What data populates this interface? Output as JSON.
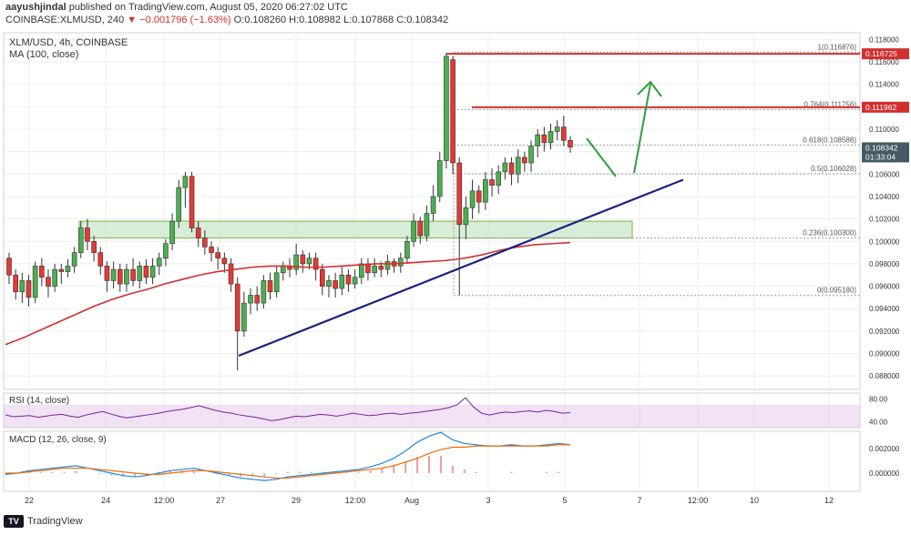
{
  "header": {
    "publisher": "aayushjindal",
    "published_text": "published on TradingView.com, August 05, 2020 06:27:02 UTC",
    "symbol": "COINBASE:XLMUSD, 240",
    "change": "▼ −0.001796 (−1.63%)",
    "ohlc": "O:0.108260 H:0.108982 L:0.107868 C:0.108342"
  },
  "footer": {
    "brand": "TradingView",
    "logo": "tradingview-logo"
  },
  "chart_data": {
    "type": "candlestick",
    "title": "XLM/USD, 4h, COINBASE",
    "ma_label": "MA (100, close)",
    "price_axis": {
      "ylim": [
        0.0868,
        0.1186
      ],
      "ticks": [
        "0.118000",
        "0.116000",
        "0.114000",
        "0.112000",
        "0.110000",
        "0.108000",
        "0.106000",
        "0.104000",
        "0.102000",
        "0.100000",
        "0.098000",
        "0.096000",
        "0.094000",
        "0.092000",
        "0.090000",
        "0.088000"
      ],
      "tick_values": [
        0.118,
        0.116,
        0.114,
        0.112,
        0.11,
        0.108,
        0.106,
        0.104,
        0.102,
        0.1,
        0.098,
        0.096,
        0.094,
        0.092,
        0.09,
        0.088
      ]
    },
    "price_badges": [
      {
        "value": 0.116725,
        "label": "0.116725",
        "color": "#d32f2f"
      },
      {
        "value": 0.111962,
        "label": "0.111962",
        "color": "#d32f2f"
      },
      {
        "value": 0.108342,
        "label": "0.108342",
        "sub": "01:33:04",
        "color": "#455a64"
      }
    ],
    "x_axis": {
      "labels": [
        "22",
        "24",
        "12:00",
        "27",
        "29",
        "12:00",
        "Aug",
        "3",
        "5",
        "7",
        "12:00",
        "10",
        "12"
      ]
    },
    "candles": [
      [
        0.0985,
        0.097,
        0.099,
        0.0962
      ],
      [
        0.097,
        0.0955,
        0.0975,
        0.0948
      ],
      [
        0.0955,
        0.0965,
        0.0972,
        0.0945
      ],
      [
        0.0965,
        0.095,
        0.097,
        0.0942
      ],
      [
        0.095,
        0.0978,
        0.0982,
        0.0945
      ],
      [
        0.0978,
        0.0968,
        0.0985,
        0.096
      ],
      [
        0.0968,
        0.096,
        0.0975,
        0.095
      ],
      [
        0.096,
        0.0975,
        0.098,
        0.0955
      ],
      [
        0.0975,
        0.0973,
        0.098,
        0.0962
      ],
      [
        0.0973,
        0.0978,
        0.0984,
        0.0968
      ],
      [
        0.0978,
        0.099,
        0.0995,
        0.0972
      ],
      [
        0.099,
        0.1012,
        0.1018,
        0.0985
      ],
      [
        0.1012,
        0.1,
        0.102,
        0.0992
      ],
      [
        0.1,
        0.099,
        0.1005,
        0.0982
      ],
      [
        0.099,
        0.0978,
        0.0995,
        0.097
      ],
      [
        0.0978,
        0.0965,
        0.0982,
        0.0955
      ],
      [
        0.0965,
        0.0975,
        0.0982,
        0.0958
      ],
      [
        0.0975,
        0.0962,
        0.098,
        0.0955
      ],
      [
        0.0962,
        0.0975,
        0.098,
        0.0955
      ],
      [
        0.0975,
        0.0965,
        0.0985,
        0.096
      ],
      [
        0.0965,
        0.0978,
        0.0982,
        0.0958
      ],
      [
        0.0978,
        0.0968,
        0.0984,
        0.0962
      ],
      [
        0.0968,
        0.0978,
        0.0985,
        0.0962
      ],
      [
        0.0978,
        0.0985,
        0.099,
        0.097
      ],
      [
        0.0985,
        0.0998,
        0.1002,
        0.0978
      ],
      [
        0.0998,
        0.1018,
        0.1025,
        0.0992
      ],
      [
        0.1018,
        0.1048,
        0.1055,
        0.1012
      ],
      [
        0.1048,
        0.1058,
        0.1062,
        0.103
      ],
      [
        0.1058,
        0.1012,
        0.1062,
        0.1008
      ],
      [
        0.1012,
        0.1003,
        0.1018,
        0.0995
      ],
      [
        0.1003,
        0.0995,
        0.101,
        0.0988
      ],
      [
        0.0995,
        0.099,
        0.1,
        0.0982
      ],
      [
        0.099,
        0.0985,
        0.0995,
        0.0975
      ],
      [
        0.0985,
        0.098,
        0.099,
        0.0972
      ],
      [
        0.098,
        0.0962,
        0.0985,
        0.0955
      ],
      [
        0.0962,
        0.092,
        0.0968,
        0.0885
      ],
      [
        0.092,
        0.0945,
        0.0955,
        0.0915
      ],
      [
        0.0945,
        0.0952,
        0.0958,
        0.0935
      ],
      [
        0.0952,
        0.0945,
        0.096,
        0.0938
      ],
      [
        0.0945,
        0.0965,
        0.097,
        0.094
      ],
      [
        0.0965,
        0.0955,
        0.0972,
        0.0948
      ],
      [
        0.0955,
        0.0972,
        0.0978,
        0.095
      ],
      [
        0.0972,
        0.0978,
        0.0982,
        0.0965
      ],
      [
        0.0978,
        0.0975,
        0.0985,
        0.0968
      ],
      [
        0.0975,
        0.0988,
        0.0998,
        0.097
      ],
      [
        0.0988,
        0.098,
        0.0992,
        0.0972
      ],
      [
        0.098,
        0.0985,
        0.099,
        0.0975
      ],
      [
        0.0985,
        0.0975,
        0.099,
        0.0965
      ],
      [
        0.0975,
        0.096,
        0.098,
        0.0952
      ],
      [
        0.096,
        0.0965,
        0.097,
        0.095
      ],
      [
        0.0965,
        0.0958,
        0.0972,
        0.095
      ],
      [
        0.0958,
        0.097,
        0.0978,
        0.0952
      ],
      [
        0.097,
        0.0962,
        0.0975,
        0.0955
      ],
      [
        0.0962,
        0.0968,
        0.0975,
        0.0958
      ],
      [
        0.0968,
        0.098,
        0.0985,
        0.0962
      ],
      [
        0.098,
        0.0972,
        0.0985,
        0.0965
      ],
      [
        0.0972,
        0.0978,
        0.0985,
        0.0968
      ],
      [
        0.0978,
        0.0975,
        0.0982,
        0.0968
      ],
      [
        0.0975,
        0.0982,
        0.0988,
        0.097
      ],
      [
        0.0982,
        0.0978,
        0.0985,
        0.0972
      ],
      [
        0.0978,
        0.0985,
        0.099,
        0.0972
      ],
      [
        0.0985,
        0.1,
        0.1005,
        0.098
      ],
      [
        0.1,
        0.1018,
        0.1025,
        0.0995
      ],
      [
        0.1018,
        0.1005,
        0.1022,
        0.0998
      ],
      [
        0.1005,
        0.1025,
        0.1032,
        0.1
      ],
      [
        0.1025,
        0.104,
        0.105,
        0.1018
      ],
      [
        0.104,
        0.1072,
        0.108,
        0.1035
      ],
      [
        0.1072,
        0.1165,
        0.1168,
        0.1065
      ],
      [
        0.1162,
        0.107,
        0.1165,
        0.106
      ],
      [
        0.107,
        0.1015,
        0.1075,
        0.0952
      ],
      [
        0.1015,
        0.103,
        0.104,
        0.1002
      ],
      [
        0.103,
        0.1045,
        0.1055,
        0.102
      ],
      [
        0.1045,
        0.1035,
        0.105,
        0.1025
      ],
      [
        0.1035,
        0.1055,
        0.1062,
        0.1028
      ],
      [
        0.1055,
        0.105,
        0.1065,
        0.104
      ],
      [
        0.105,
        0.1062,
        0.1068,
        0.1042
      ],
      [
        0.1062,
        0.107,
        0.1075,
        0.1055
      ],
      [
        0.107,
        0.106,
        0.1075,
        0.105
      ],
      [
        0.106,
        0.1075,
        0.1082,
        0.1052
      ],
      [
        0.1075,
        0.107,
        0.108,
        0.1062
      ],
      [
        0.107,
        0.1085,
        0.109,
        0.1062
      ],
      [
        0.1085,
        0.1095,
        0.11,
        0.1075
      ],
      [
        0.1095,
        0.1088,
        0.1102,
        0.108
      ],
      [
        0.1088,
        0.1098,
        0.1105,
        0.1082
      ],
      [
        0.1098,
        0.1102,
        0.1108,
        0.109
      ],
      [
        0.1102,
        0.109,
        0.1112,
        0.1085
      ],
      [
        0.109,
        0.1084,
        0.1094,
        0.1079
      ]
    ],
    "ma100": [
      0.0908,
      0.0914,
      0.0921,
      0.0928,
      0.0935,
      0.0942,
      0.0948,
      0.0953,
      0.0957,
      0.0962,
      0.0966,
      0.097,
      0.0973,
      0.0975,
      0.0977,
      0.0978,
      0.0978,
      0.0977,
      0.0977,
      0.0978,
      0.0979,
      0.098,
      0.098,
      0.0981,
      0.0982,
      0.0983,
      0.0985,
      0.0988,
      0.0992,
      0.0995,
      0.0997,
      0.0998,
      0.0999
    ],
    "fib": {
      "levels": [
        {
          "ratio": "1",
          "value": 0.116876,
          "label": "1(0.116876)"
        },
        {
          "ratio": "0.764",
          "value": 0.111756,
          "label": "0.764(0.111756)"
        },
        {
          "ratio": "0.618",
          "value": 0.108588,
          "label": "0.618(0.108588)"
        },
        {
          "ratio": "0.5",
          "value": 0.106028,
          "label": "0.5(0.106028)"
        },
        {
          "ratio": "0.236",
          "value": 0.1003,
          "label": "0.236(0.100300)"
        },
        {
          "ratio": "0",
          "value": 0.09518,
          "label": "0(0.095180)"
        }
      ]
    },
    "resistance_lines": [
      0.116725,
      0.111962
    ],
    "support_zone": [
      0.1003,
      0.1018
    ],
    "trend_line": [
      [
        0.0898,
        0
      ],
      [
        0.1055,
        1
      ]
    ],
    "rsi": {
      "label": "RSI (14, close)",
      "ticks": [
        "80.00",
        "40.00"
      ],
      "tick_values": [
        80,
        40
      ],
      "band": [
        30,
        70
      ],
      "values": [
        52,
        49,
        50,
        51,
        48,
        50,
        52,
        53,
        50,
        48,
        52,
        55,
        58,
        54,
        50,
        47,
        49,
        51,
        53,
        55,
        58,
        60,
        62,
        65,
        68,
        64,
        60,
        57,
        55,
        52,
        50,
        48,
        45,
        42,
        44,
        47,
        50,
        49,
        51,
        53,
        52,
        50,
        52,
        55,
        53,
        51,
        52,
        54,
        55,
        53,
        55,
        56,
        58,
        60,
        62,
        65,
        70,
        82,
        66,
        55,
        52,
        55,
        57,
        56,
        58,
        59,
        57,
        60,
        58,
        55,
        56
      ]
    },
    "macd": {
      "label": "MACD (12, 26, close, 9)",
      "ticks": [
        "0.002000",
        "0.000000"
      ],
      "tick_values": [
        0.002,
        0.0
      ],
      "macd": [
        -0.0001,
        0.0,
        0.0002,
        0.0003,
        0.0004,
        0.0005,
        0.0006,
        0.0004,
        0.0002,
        0.0,
        -0.0002,
        -0.0003,
        -0.0002,
        0.0,
        0.0002,
        0.0003,
        0.0004,
        0.0002,
        0.0,
        -0.0002,
        -0.0004,
        -0.0005,
        -0.0006,
        -0.0005,
        -0.0003,
        -0.0002,
        -0.0001,
        0.0,
        0.0001,
        0.0002,
        0.0003,
        0.0005,
        0.0008,
        0.0012,
        0.0018,
        0.0025,
        0.003,
        0.0033,
        0.0027,
        0.0024,
        0.0023,
        0.0022,
        0.0022,
        0.0023,
        0.0022,
        0.0022,
        0.0023,
        0.0024,
        0.0023
      ],
      "signal": [
        0.0,
        0.0,
        0.0001,
        0.0002,
        0.0003,
        0.0004,
        0.0004,
        0.0004,
        0.0003,
        0.0002,
        0.0001,
        0.0,
        -0.0001,
        -0.0001,
        0.0,
        0.0001,
        0.0002,
        0.0002,
        0.0001,
        0.0,
        -0.0001,
        -0.0002,
        -0.0003,
        -0.0004,
        -0.0004,
        -0.0003,
        -0.0002,
        -0.0001,
        0.0,
        0.0001,
        0.0002,
        0.0003,
        0.0004,
        0.0006,
        0.0009,
        0.0012,
        0.0016,
        0.0019,
        0.0021,
        0.0021,
        0.0022,
        0.0022,
        0.0022,
        0.0022,
        0.0022,
        0.0022,
        0.0022,
        0.0023,
        0.0023
      ]
    }
  }
}
